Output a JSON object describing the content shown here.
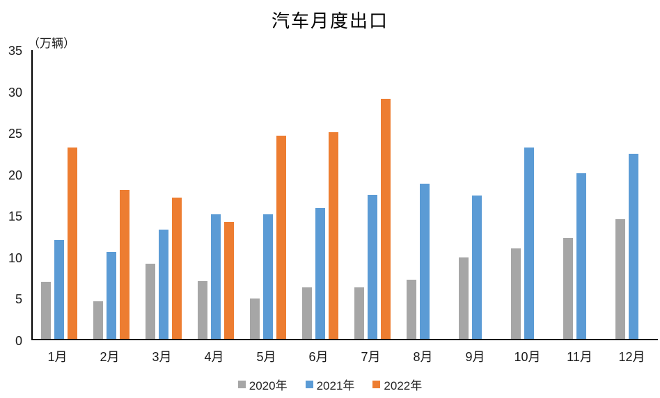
{
  "chart_data": {
    "type": "bar",
    "title": "汽车月度出口",
    "ylabel": "（万辆）",
    "categories": [
      "1月",
      "2月",
      "3月",
      "4月",
      "5月",
      "6月",
      "7月",
      "8月",
      "9月",
      "10月",
      "11月",
      "12月"
    ],
    "series": [
      {
        "name": "2020年",
        "color": "#A6A6A6",
        "values": [
          6.9,
          4.5,
          9.1,
          7.0,
          4.9,
          6.2,
          6.2,
          7.1,
          9.8,
          10.9,
          12.2,
          14.4
        ]
      },
      {
        "name": "2021年",
        "color": "#5B9BD5",
        "values": [
          11.9,
          10.5,
          13.2,
          15.0,
          15.0,
          15.8,
          17.4,
          18.7,
          17.3,
          23.1,
          20.0,
          22.3
        ]
      },
      {
        "name": "2022年",
        "color": "#ED7D31",
        "values": [
          23.1,
          18.0,
          17.0,
          14.1,
          24.5,
          24.9,
          29.0,
          null,
          null,
          null,
          null,
          null
        ]
      }
    ],
    "ylim": [
      0,
      35
    ],
    "yticks": [
      0,
      5,
      10,
      15,
      20,
      25,
      30,
      35
    ],
    "legend_position": "bottom",
    "grid": false
  },
  "colors": {
    "axis_line": "#000000",
    "tick_text": "#1a1a1a",
    "background": "#ffffff"
  }
}
